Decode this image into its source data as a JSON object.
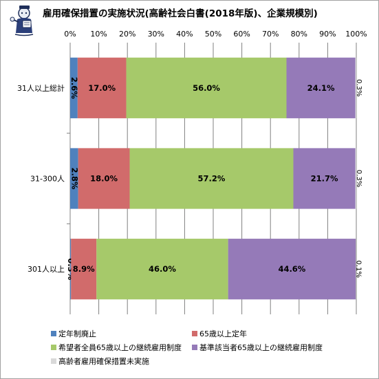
{
  "chart_data": {
    "type": "bar",
    "orientation": "horizontal",
    "stacked": "percent",
    "title": "雇用確保措置の実施状況(高齢社会白書(2018年版)、企業規模別)",
    "categories": [
      "31人以上総計",
      "31-300人",
      "301人以上"
    ],
    "series": [
      {
        "name": "定年制廃止",
        "color": "#4f81bd",
        "values": [
          2.6,
          2.8,
          0.3
        ],
        "labels": [
          "2.6%",
          "2.8%",
          "0.3%"
        ]
      },
      {
        "name": "65歳以上定年",
        "color": "#d16b6b",
        "values": [
          17.0,
          18.0,
          8.9
        ],
        "labels": [
          "17.0%",
          "18.0%",
          "8.9%"
        ]
      },
      {
        "name": "希望者全員65歳以上の継続雇用制度",
        "color": "#a6c96a",
        "values": [
          56.0,
          57.2,
          46.0
        ],
        "labels": [
          "56.0%",
          "57.2%",
          "46.0%"
        ]
      },
      {
        "name": "基準該当者65歳以上の継続雇用制度",
        "color": "#957ab8",
        "values": [
          24.1,
          21.7,
          44.6
        ],
        "labels": [
          "24.1%",
          "21.7%",
          "44.6%"
        ]
      },
      {
        "name": "高齢者雇用確保措置未実施",
        "color": "#d9d9d9",
        "values": [
          0.3,
          0.3,
          0.1
        ],
        "labels": [
          "0.3%",
          "0.3%",
          "0.1%"
        ]
      }
    ],
    "xlim": [
      0,
      100
    ],
    "x_tick_labels": [
      "0%",
      "10%",
      "20%",
      "30%",
      "40%",
      "50%",
      "60%",
      "70%",
      "80%",
      "90%",
      "100%"
    ],
    "grid": true,
    "legend_position": "bottom"
  }
}
